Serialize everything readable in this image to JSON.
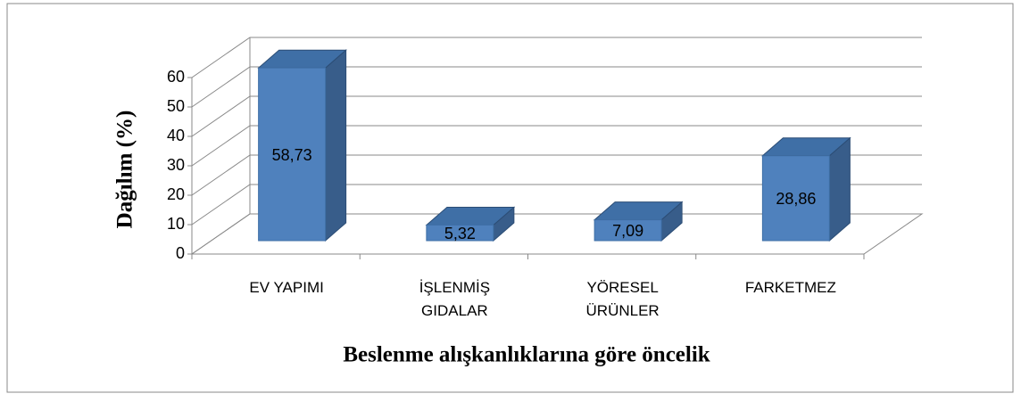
{
  "chart_data": {
    "type": "bar3d",
    "categories": [
      "EV YAPIMI",
      "İŞLENMİŞ GIDALAR",
      "YÖRESEL ÜRÜNLER",
      "FARKETMEZ"
    ],
    "values": [
      58.73,
      5.32,
      7.09,
      28.86
    ],
    "value_labels": [
      "58,73",
      "5,32",
      "7,09",
      "28,86"
    ],
    "color": "#4f81bd",
    "ylim": [
      0,
      60
    ],
    "yticks": [
      0,
      10,
      20,
      30,
      40,
      50,
      60
    ],
    "grid": true,
    "x_label": "Beslenme alışkanlıklarına göre öncelik",
    "y_label": "Dağılım (%)"
  }
}
